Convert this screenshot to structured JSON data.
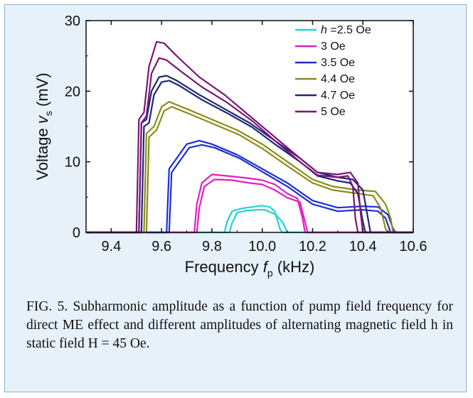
{
  "chart_data": {
    "type": "line",
    "xlabel": "Frequency",
    "xlabel_symbol": "f",
    "xlabel_subscript": "p",
    "xlabel_unit": "(kHz)",
    "ylabel": "Voltage",
    "ylabel_symbol": "v",
    "ylabel_subscript": "s",
    "ylabel_unit": "(mV)",
    "xlim": [
      9.3,
      10.6
    ],
    "ylim": [
      0,
      30
    ],
    "xticks": [
      9.4,
      9.6,
      9.8,
      10.0,
      10.2,
      10.4,
      10.6
    ],
    "xtick_labels": [
      "9.4",
      "9.6",
      "9.8",
      "10.0",
      "10.2",
      "10.4",
      "10.6"
    ],
    "yticks": [
      0,
      10,
      20,
      30
    ],
    "ytick_labels": [
      "0",
      "10",
      "20",
      "30"
    ],
    "legend_position": "top-right",
    "series": [
      {
        "name": "h =2.5 Oe",
        "legend_italic": "h",
        "legend_rest": " =2.5 Oe",
        "color": "#22d3d3",
        "upper": [
          [
            9.3,
            0
          ],
          [
            9.85,
            0
          ],
          [
            9.86,
            1.5
          ],
          [
            9.88,
            3.0
          ],
          [
            9.92,
            3.4
          ],
          [
            9.96,
            3.6
          ],
          [
            10.0,
            3.8
          ],
          [
            10.03,
            3.6
          ],
          [
            10.05,
            3.0
          ],
          [
            10.07,
            0.5
          ],
          [
            10.08,
            0
          ],
          [
            10.6,
            0
          ]
        ],
        "lower": [
          [
            9.3,
            0
          ],
          [
            9.87,
            0
          ],
          [
            9.88,
            1.3
          ],
          [
            9.9,
            2.8
          ],
          [
            9.94,
            3.1
          ],
          [
            9.98,
            3.2
          ],
          [
            10.01,
            3.2
          ],
          [
            10.05,
            2.6
          ],
          [
            10.08,
            1.5
          ],
          [
            10.1,
            0
          ],
          [
            10.6,
            0
          ]
        ]
      },
      {
        "name": "3 Oe",
        "color": "#e21fc4",
        "upper": [
          [
            9.3,
            0
          ],
          [
            9.73,
            0
          ],
          [
            9.74,
            4.0
          ],
          [
            9.76,
            7.0
          ],
          [
            9.8,
            8.2
          ],
          [
            9.86,
            8.0
          ],
          [
            9.94,
            7.7
          ],
          [
            10.0,
            7.4
          ],
          [
            10.05,
            6.8
          ],
          [
            10.1,
            5.5
          ],
          [
            10.14,
            4.8
          ],
          [
            10.16,
            2.0
          ],
          [
            10.17,
            0
          ],
          [
            10.6,
            0
          ]
        ],
        "lower": [
          [
            9.3,
            0
          ],
          [
            9.74,
            0
          ],
          [
            9.75,
            3.5
          ],
          [
            9.77,
            6.5
          ],
          [
            9.81,
            7.5
          ],
          [
            9.88,
            7.4
          ],
          [
            9.95,
            7.0
          ],
          [
            10.0,
            6.8
          ],
          [
            10.05,
            6.0
          ],
          [
            10.1,
            4.9
          ],
          [
            10.15,
            4.3
          ],
          [
            10.17,
            1.5
          ],
          [
            10.18,
            0
          ],
          [
            10.6,
            0
          ]
        ]
      },
      {
        "name": "3.5 Oe",
        "color": "#1c2fd1",
        "upper": [
          [
            9.3,
            0
          ],
          [
            9.62,
            0
          ],
          [
            9.63,
            9.0
          ],
          [
            9.66,
            10.5
          ],
          [
            9.7,
            12.5
          ],
          [
            9.75,
            13.0
          ],
          [
            9.8,
            12.5
          ],
          [
            9.9,
            11.0
          ],
          [
            10.0,
            9.0
          ],
          [
            10.1,
            7.0
          ],
          [
            10.2,
            4.5
          ],
          [
            10.3,
            3.5
          ],
          [
            10.4,
            3.7
          ],
          [
            10.46,
            3.6
          ],
          [
            10.5,
            2.5
          ],
          [
            10.52,
            0.5
          ],
          [
            10.53,
            0
          ],
          [
            10.6,
            0
          ]
        ],
        "lower": [
          [
            9.3,
            0
          ],
          [
            9.63,
            0
          ],
          [
            9.64,
            8.5
          ],
          [
            9.67,
            10.0
          ],
          [
            9.71,
            12.0
          ],
          [
            9.76,
            12.4
          ],
          [
            9.81,
            12.0
          ],
          [
            9.91,
            10.5
          ],
          [
            10.0,
            8.6
          ],
          [
            10.1,
            6.5
          ],
          [
            10.2,
            4.0
          ],
          [
            10.3,
            3.0
          ],
          [
            10.4,
            3.2
          ],
          [
            10.46,
            3.0
          ],
          [
            10.49,
            2.0
          ],
          [
            10.51,
            0
          ],
          [
            10.6,
            0
          ]
        ]
      },
      {
        "name": "4.4 Oe",
        "color": "#8c8c1c",
        "upper": [
          [
            9.3,
            0
          ],
          [
            9.53,
            0
          ],
          [
            9.54,
            14.0
          ],
          [
            9.57,
            15.0
          ],
          [
            9.6,
            17.8
          ],
          [
            9.63,
            18.5
          ],
          [
            9.7,
            17.5
          ],
          [
            9.8,
            16.0
          ],
          [
            9.9,
            14.5
          ],
          [
            10.0,
            12.5
          ],
          [
            10.1,
            10.0
          ],
          [
            10.2,
            7.5
          ],
          [
            10.28,
            6.5
          ],
          [
            10.38,
            6.0
          ],
          [
            10.45,
            5.8
          ],
          [
            10.49,
            4.0
          ],
          [
            10.51,
            2.0
          ],
          [
            10.52,
            0
          ],
          [
            10.6,
            0
          ]
        ],
        "lower": [
          [
            9.3,
            0
          ],
          [
            9.54,
            0
          ],
          [
            9.55,
            13.5
          ],
          [
            9.58,
            14.5
          ],
          [
            9.61,
            17.2
          ],
          [
            9.64,
            17.8
          ],
          [
            9.71,
            16.8
          ],
          [
            9.81,
            15.3
          ],
          [
            9.91,
            13.8
          ],
          [
            10.0,
            11.9
          ],
          [
            10.1,
            9.4
          ],
          [
            10.2,
            7.0
          ],
          [
            10.28,
            6.0
          ],
          [
            10.38,
            5.5
          ],
          [
            10.44,
            5.2
          ],
          [
            10.47,
            3.5
          ],
          [
            10.49,
            0.5
          ],
          [
            10.5,
            0
          ],
          [
            10.6,
            0
          ]
        ]
      },
      {
        "name": "4.7 Oe",
        "color": "#1f2672",
        "upper": [
          [
            9.3,
            0
          ],
          [
            9.51,
            0
          ],
          [
            9.52,
            15.5
          ],
          [
            9.54,
            16.0
          ],
          [
            9.56,
            20.0
          ],
          [
            9.59,
            22.0
          ],
          [
            9.62,
            22.2
          ],
          [
            9.66,
            21.5
          ],
          [
            9.75,
            19.5
          ],
          [
            9.85,
            17.5
          ],
          [
            9.95,
            15.5
          ],
          [
            10.05,
            13.0
          ],
          [
            10.15,
            10.5
          ],
          [
            10.22,
            8.5
          ],
          [
            10.3,
            7.8
          ],
          [
            10.36,
            7.5
          ],
          [
            10.4,
            6.0
          ],
          [
            10.42,
            2.0
          ],
          [
            10.43,
            0
          ],
          [
            10.6,
            0
          ]
        ],
        "lower": [
          [
            9.3,
            0
          ],
          [
            9.52,
            0
          ],
          [
            9.53,
            15.0
          ],
          [
            9.55,
            15.5
          ],
          [
            9.57,
            19.5
          ],
          [
            9.6,
            21.3
          ],
          [
            9.63,
            21.5
          ],
          [
            9.67,
            20.8
          ],
          [
            9.76,
            18.8
          ],
          [
            9.86,
            16.9
          ],
          [
            9.96,
            14.9
          ],
          [
            10.05,
            12.5
          ],
          [
            10.15,
            10.0
          ],
          [
            10.22,
            8.0
          ],
          [
            10.3,
            7.3
          ],
          [
            10.35,
            7.0
          ],
          [
            10.38,
            5.5
          ],
          [
            10.4,
            1.5
          ],
          [
            10.41,
            0
          ],
          [
            10.6,
            0
          ]
        ]
      },
      {
        "name": "5 Oe",
        "color": "#7a1678",
        "upper": [
          [
            9.3,
            0
          ],
          [
            9.5,
            0
          ],
          [
            9.51,
            16.0
          ],
          [
            9.53,
            17.0
          ],
          [
            9.55,
            23.5
          ],
          [
            9.58,
            27.0
          ],
          [
            9.61,
            26.8
          ],
          [
            9.66,
            25.0
          ],
          [
            9.75,
            22.0
          ],
          [
            9.85,
            19.5
          ],
          [
            9.95,
            16.5
          ],
          [
            10.05,
            13.5
          ],
          [
            10.15,
            10.5
          ],
          [
            10.22,
            8.5
          ],
          [
            10.3,
            8.2
          ],
          [
            10.35,
            8.5
          ],
          [
            10.38,
            7.0
          ],
          [
            10.39,
            3.0
          ],
          [
            10.4,
            0
          ],
          [
            10.6,
            0
          ]
        ],
        "lower": [
          [
            9.3,
            0
          ],
          [
            9.51,
            0
          ],
          [
            9.52,
            15.5
          ],
          [
            9.54,
            16.5
          ],
          [
            9.56,
            22.5
          ],
          [
            9.59,
            24.7
          ],
          [
            9.62,
            24.4
          ],
          [
            9.67,
            23.0
          ],
          [
            9.76,
            20.6
          ],
          [
            9.86,
            18.4
          ],
          [
            9.96,
            15.8
          ],
          [
            10.05,
            13.0
          ],
          [
            10.15,
            10.0
          ],
          [
            10.22,
            8.1
          ],
          [
            10.3,
            7.8
          ],
          [
            10.34,
            8.0
          ],
          [
            10.36,
            6.5
          ],
          [
            10.37,
            2.0
          ],
          [
            10.38,
            0
          ],
          [
            10.6,
            0
          ]
        ]
      }
    ]
  },
  "caption": "FIG. 5. Subharmonic amplitude as a function of pump field frequency for direct ME effect and different amplitudes of alternating magnetic field h in static field H = 45 Oe."
}
